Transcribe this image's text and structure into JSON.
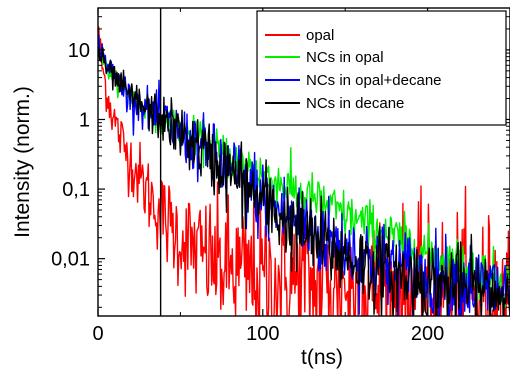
{
  "chart_data": {
    "type": "line",
    "title": "",
    "xlabel": "t(ns)",
    "ylabel": "Intensity (norm.)",
    "xlim": [
      0,
      250
    ],
    "ylim": [
      0.0015,
      40
    ],
    "yscale": "log",
    "grid": false,
    "legend_position": "top-right",
    "x_ticks": [
      {
        "value": 0,
        "label": "0"
      },
      {
        "value": 100,
        "label": "100"
      },
      {
        "value": 200,
        "label": "200"
      }
    ],
    "y_ticks": [
      {
        "value": 10,
        "label": "10"
      },
      {
        "value": 1,
        "label": "1"
      },
      {
        "value": 0.1,
        "label": "0,1"
      },
      {
        "value": 0.01,
        "label": "0,01"
      }
    ],
    "annotations": [
      {
        "type": "vertical-line",
        "x": 38
      }
    ],
    "series": [
      {
        "name": "opal",
        "color": "#ff0000",
        "curve": [
          [
            0,
            22
          ],
          [
            1,
            11
          ],
          [
            2,
            7.5
          ],
          [
            3,
            5
          ],
          [
            5,
            2.8
          ],
          [
            7,
            1.7
          ],
          [
            10,
            0.95
          ],
          [
            15,
            0.45
          ],
          [
            20,
            0.25
          ],
          [
            25,
            0.15
          ],
          [
            30,
            0.09
          ],
          [
            35,
            0.06
          ],
          [
            40,
            0.038
          ],
          [
            50,
            0.02
          ],
          [
            60,
            0.013
          ],
          [
            70,
            0.009
          ],
          [
            80,
            0.007
          ],
          [
            100,
            0.005
          ],
          [
            150,
            0.004
          ],
          [
            250,
            0.003
          ]
        ],
        "noise": 0.55
      },
      {
        "name": "NCs in opal",
        "color": "#00ee00",
        "curve": [
          [
            0,
            11
          ],
          [
            5,
            5.5
          ],
          [
            10,
            3.8
          ],
          [
            20,
            2.1
          ],
          [
            30,
            1.4
          ],
          [
            38,
            1.05
          ],
          [
            50,
            0.72
          ],
          [
            60,
            0.53
          ],
          [
            70,
            0.39
          ],
          [
            80,
            0.29
          ],
          [
            100,
            0.16
          ],
          [
            120,
            0.093
          ],
          [
            140,
            0.055
          ],
          [
            160,
            0.033
          ],
          [
            180,
            0.02
          ],
          [
            200,
            0.012
          ],
          [
            225,
            0.0075
          ],
          [
            250,
            0.0045
          ]
        ],
        "noise": 0.18
      },
      {
        "name": "NCs in opal+decane",
        "color": "#0000ff",
        "curve": [
          [
            0,
            14
          ],
          [
            3,
            8.5
          ],
          [
            6,
            6
          ],
          [
            10,
            4.2
          ],
          [
            20,
            2.1
          ],
          [
            30,
            1.35
          ],
          [
            38,
            1.05
          ],
          [
            50,
            0.62
          ],
          [
            60,
            0.42
          ],
          [
            70,
            0.27
          ],
          [
            80,
            0.18
          ],
          [
            100,
            0.072
          ],
          [
            120,
            0.034
          ],
          [
            140,
            0.018
          ],
          [
            160,
            0.011
          ],
          [
            180,
            0.0075
          ],
          [
            200,
            0.0055
          ],
          [
            250,
            0.0035
          ]
        ],
        "noise": 0.3
      },
      {
        "name": "NCs in decane",
        "color": "#000000",
        "curve": [
          [
            0,
            9.5
          ],
          [
            5,
            5.5
          ],
          [
            10,
            3.8
          ],
          [
            20,
            2.1
          ],
          [
            30,
            1.35
          ],
          [
            38,
            1.05
          ],
          [
            50,
            0.62
          ],
          [
            60,
            0.41
          ],
          [
            70,
            0.26
          ],
          [
            80,
            0.17
          ],
          [
            100,
            0.065
          ],
          [
            120,
            0.028
          ],
          [
            140,
            0.014
          ],
          [
            160,
            0.0085
          ],
          [
            180,
            0.006
          ],
          [
            200,
            0.0045
          ],
          [
            250,
            0.003
          ]
        ],
        "noise": 0.3
      }
    ]
  }
}
